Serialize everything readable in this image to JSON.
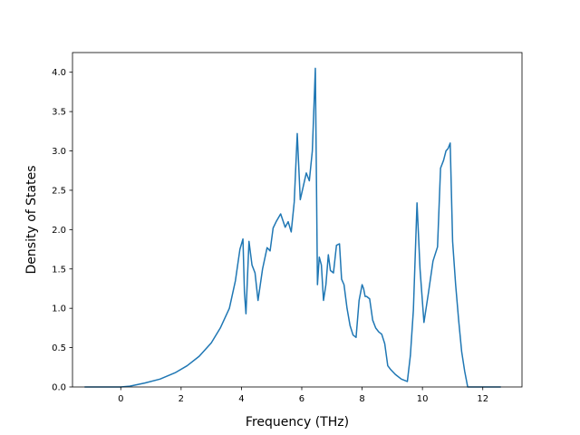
{
  "chart_data": {
    "type": "line",
    "title": "",
    "xlabel": "Frequency (THz)",
    "ylabel": "Density of States",
    "xlim": [
      -1.6,
      13.3
    ],
    "ylim": [
      0,
      4.25
    ],
    "xticks": [
      0,
      2,
      4,
      6,
      8,
      10,
      12
    ],
    "yticks": [
      0.0,
      0.5,
      1.0,
      1.5,
      2.0,
      2.5,
      3.0,
      3.5,
      4.0
    ],
    "xtick_labels": [
      "0",
      "2",
      "4",
      "6",
      "8",
      "10",
      "12"
    ],
    "ytick_labels": [
      "0.0",
      "0.5",
      "1.0",
      "1.5",
      "2.0",
      "2.5",
      "3.0",
      "3.5",
      "4.0"
    ],
    "grid": false,
    "line_color": "#1f77b4",
    "series": [
      {
        "x": [
          -1.2,
          0.0,
          0.3,
          0.8,
          1.3,
          1.8,
          2.2,
          2.6,
          3.0,
          3.3,
          3.6,
          3.8,
          3.95,
          4.05,
          4.1,
          4.15,
          4.25,
          4.35,
          4.45,
          4.55,
          4.7,
          4.85,
          4.95,
          5.05,
          5.15,
          5.3,
          5.45,
          5.55,
          5.65,
          5.75,
          5.85,
          5.95,
          6.05,
          6.15,
          6.25,
          6.35,
          6.45,
          6.52,
          6.58,
          6.65,
          6.72,
          6.8,
          6.88,
          6.95,
          7.05,
          7.15,
          7.25,
          7.32,
          7.4,
          7.5,
          7.6,
          7.7,
          7.8,
          7.9,
          8.0,
          8.05,
          8.1,
          8.15,
          8.25,
          8.35,
          8.45,
          8.55,
          8.65,
          8.75,
          8.85,
          8.95,
          9.1,
          9.3,
          9.5,
          9.6,
          9.7,
          9.82,
          9.92,
          10.05,
          10.2,
          10.35,
          10.5,
          10.6,
          10.7,
          10.78,
          10.85,
          10.92,
          11.0,
          11.1,
          11.2,
          11.3,
          11.4,
          11.5,
          11.6,
          11.8,
          12.2,
          12.6
        ],
        "y": [
          0.0,
          0.0,
          0.01,
          0.05,
          0.1,
          0.18,
          0.27,
          0.39,
          0.56,
          0.75,
          1.0,
          1.35,
          1.75,
          1.88,
          1.2,
          0.93,
          1.85,
          1.55,
          1.45,
          1.1,
          1.5,
          1.77,
          1.73,
          2.02,
          2.1,
          2.2,
          2.03,
          2.1,
          1.97,
          2.35,
          3.22,
          2.38,
          2.55,
          2.72,
          2.62,
          3.0,
          4.05,
          1.3,
          1.65,
          1.55,
          1.1,
          1.3,
          1.68,
          1.48,
          1.45,
          1.8,
          1.82,
          1.37,
          1.3,
          1.0,
          0.78,
          0.66,
          0.63,
          1.1,
          1.3,
          1.25,
          1.15,
          1.15,
          1.12,
          0.85,
          0.75,
          0.7,
          0.67,
          0.55,
          0.27,
          0.22,
          0.16,
          0.1,
          0.07,
          0.4,
          0.98,
          2.34,
          1.5,
          0.82,
          1.2,
          1.6,
          1.78,
          2.78,
          2.88,
          3.0,
          3.03,
          3.1,
          1.85,
          1.3,
          0.85,
          0.45,
          0.2,
          0.0,
          0.0,
          0.0,
          0.0,
          0.0
        ]
      }
    ]
  }
}
